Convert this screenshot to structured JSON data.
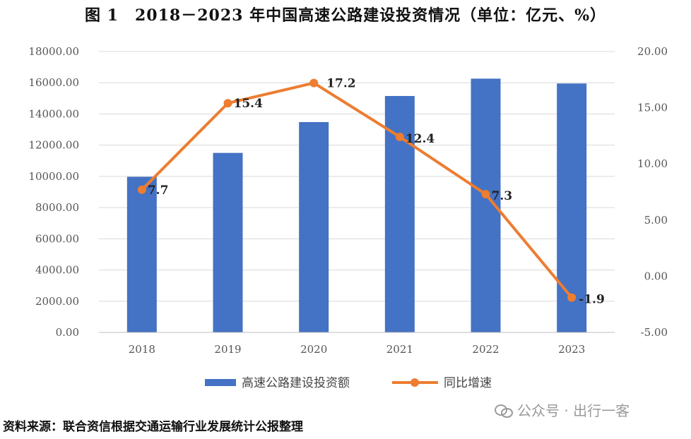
{
  "title": "图 1　2018－2023 年中国高速公路建设投资情况（单位：亿元、%）",
  "source": "资料来源：联合资信根据交通运输行业发展统计公报整理",
  "watermark": "公众号 · 出行一客",
  "colors": {
    "bar": "#4472C4",
    "line": "#ED7D31",
    "grid": "#D9D9D9"
  },
  "chart_data": {
    "type": "bar",
    "categories": [
      "2018",
      "2019",
      "2020",
      "2021",
      "2022",
      "2023"
    ],
    "series": [
      {
        "name": "高速公路建设投资额",
        "type": "bar",
        "axis": "left",
        "values": [
          9972,
          11504,
          13479,
          15151,
          16262,
          15951
        ]
      },
      {
        "name": "同比增速",
        "type": "line",
        "axis": "right",
        "values": [
          7.7,
          15.4,
          17.2,
          12.4,
          7.3,
          -1.9
        ]
      }
    ],
    "left_axis": {
      "range": [
        0,
        18000
      ],
      "ticks": [
        "0.00",
        "2000.00",
        "4000.00",
        "6000.00",
        "8000.00",
        "10000.00",
        "12000.00",
        "14000.00",
        "16000.00",
        "18000.00"
      ]
    },
    "right_axis": {
      "range": [
        -5,
        20
      ],
      "ticks": [
        "-5.00",
        "0.00",
        "5.00",
        "10.00",
        "15.00",
        "20.00"
      ]
    },
    "data_labels": [
      "7.7",
      "15.4",
      "17.2",
      "12.4",
      "7.3",
      "-1.9"
    ],
    "grid": true,
    "legend_position": "bottom"
  }
}
